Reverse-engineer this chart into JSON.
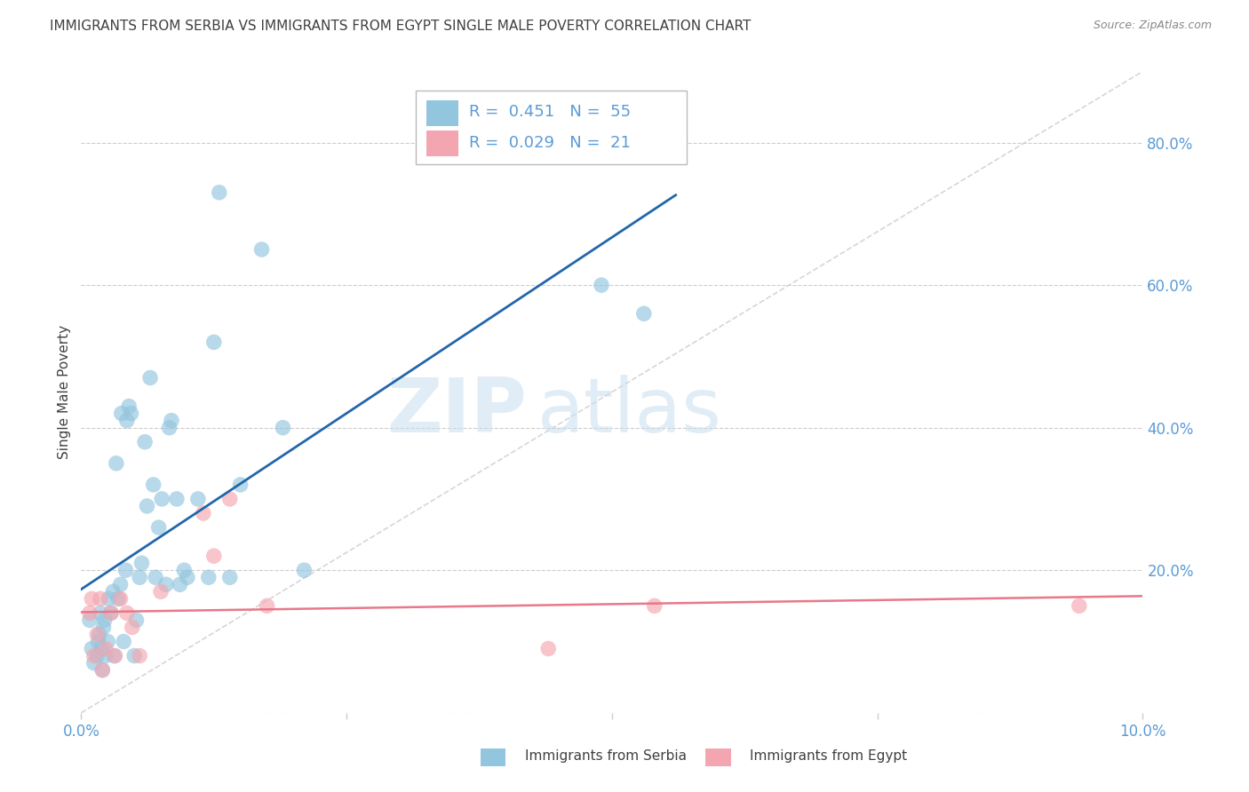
{
  "title": "IMMIGRANTS FROM SERBIA VS IMMIGRANTS FROM EGYPT SINGLE MALE POVERTY CORRELATION CHART",
  "source": "Source: ZipAtlas.com",
  "ylabel": "Single Male Poverty",
  "x_min": 0.0,
  "x_max": 0.1,
  "y_min": 0.0,
  "y_max": 0.9,
  "serbia_color": "#92c5de",
  "egypt_color": "#f4a6b0",
  "serbia_line_color": "#2166ac",
  "egypt_line_color": "#e8788a",
  "diag_line_color": "#cccccc",
  "serbia_R": "0.451",
  "serbia_N": "55",
  "egypt_R": "0.029",
  "egypt_N": "21",
  "legend_serbia_label": "Immigrants from Serbia",
  "legend_egypt_label": "Immigrants from Egypt",
  "watermark_zip": "ZIP",
  "watermark_atlas": "atlas",
  "serbia_x": [
    0.0008,
    0.001,
    0.0012,
    0.0015,
    0.0016,
    0.0017,
    0.0018,
    0.0019,
    0.002,
    0.0021,
    0.0022,
    0.0023,
    0.0025,
    0.0026,
    0.0028,
    0.003,
    0.0031,
    0.0033,
    0.0035,
    0.0037,
    0.0038,
    0.004,
    0.0042,
    0.0043,
    0.0045,
    0.0047,
    0.005,
    0.0052,
    0.0055,
    0.0057,
    0.006,
    0.0062,
    0.0065,
    0.0068,
    0.007,
    0.0073,
    0.0076,
    0.008,
    0.0083,
    0.0085,
    0.009,
    0.0093,
    0.0097,
    0.01,
    0.011,
    0.012,
    0.0125,
    0.013,
    0.014,
    0.015,
    0.017,
    0.019,
    0.021,
    0.049,
    0.053
  ],
  "serbia_y": [
    0.13,
    0.09,
    0.07,
    0.08,
    0.1,
    0.11,
    0.14,
    0.09,
    0.06,
    0.12,
    0.13,
    0.08,
    0.1,
    0.16,
    0.14,
    0.17,
    0.08,
    0.35,
    0.16,
    0.18,
    0.42,
    0.1,
    0.2,
    0.41,
    0.43,
    0.42,
    0.08,
    0.13,
    0.19,
    0.21,
    0.38,
    0.29,
    0.47,
    0.32,
    0.19,
    0.26,
    0.3,
    0.18,
    0.4,
    0.41,
    0.3,
    0.18,
    0.2,
    0.19,
    0.3,
    0.19,
    0.52,
    0.73,
    0.19,
    0.32,
    0.65,
    0.4,
    0.2,
    0.6,
    0.56
  ],
  "egypt_x": [
    0.0008,
    0.001,
    0.0012,
    0.0015,
    0.0018,
    0.002,
    0.0023,
    0.0028,
    0.0032,
    0.0037,
    0.0043,
    0.0048,
    0.0055,
    0.0075,
    0.0115,
    0.0125,
    0.014,
    0.0175,
    0.044,
    0.054,
    0.094
  ],
  "egypt_y": [
    0.14,
    0.16,
    0.08,
    0.11,
    0.16,
    0.06,
    0.09,
    0.14,
    0.08,
    0.16,
    0.14,
    0.12,
    0.08,
    0.17,
    0.28,
    0.22,
    0.3,
    0.15,
    0.09,
    0.15,
    0.15
  ],
  "background_color": "#ffffff",
  "grid_color": "#cccccc",
  "axis_label_color": "#5b9bd5",
  "title_color": "#404040",
  "title_fontsize": 11,
  "source_color": "#888888",
  "legend_text_color": "#5b9bd5"
}
